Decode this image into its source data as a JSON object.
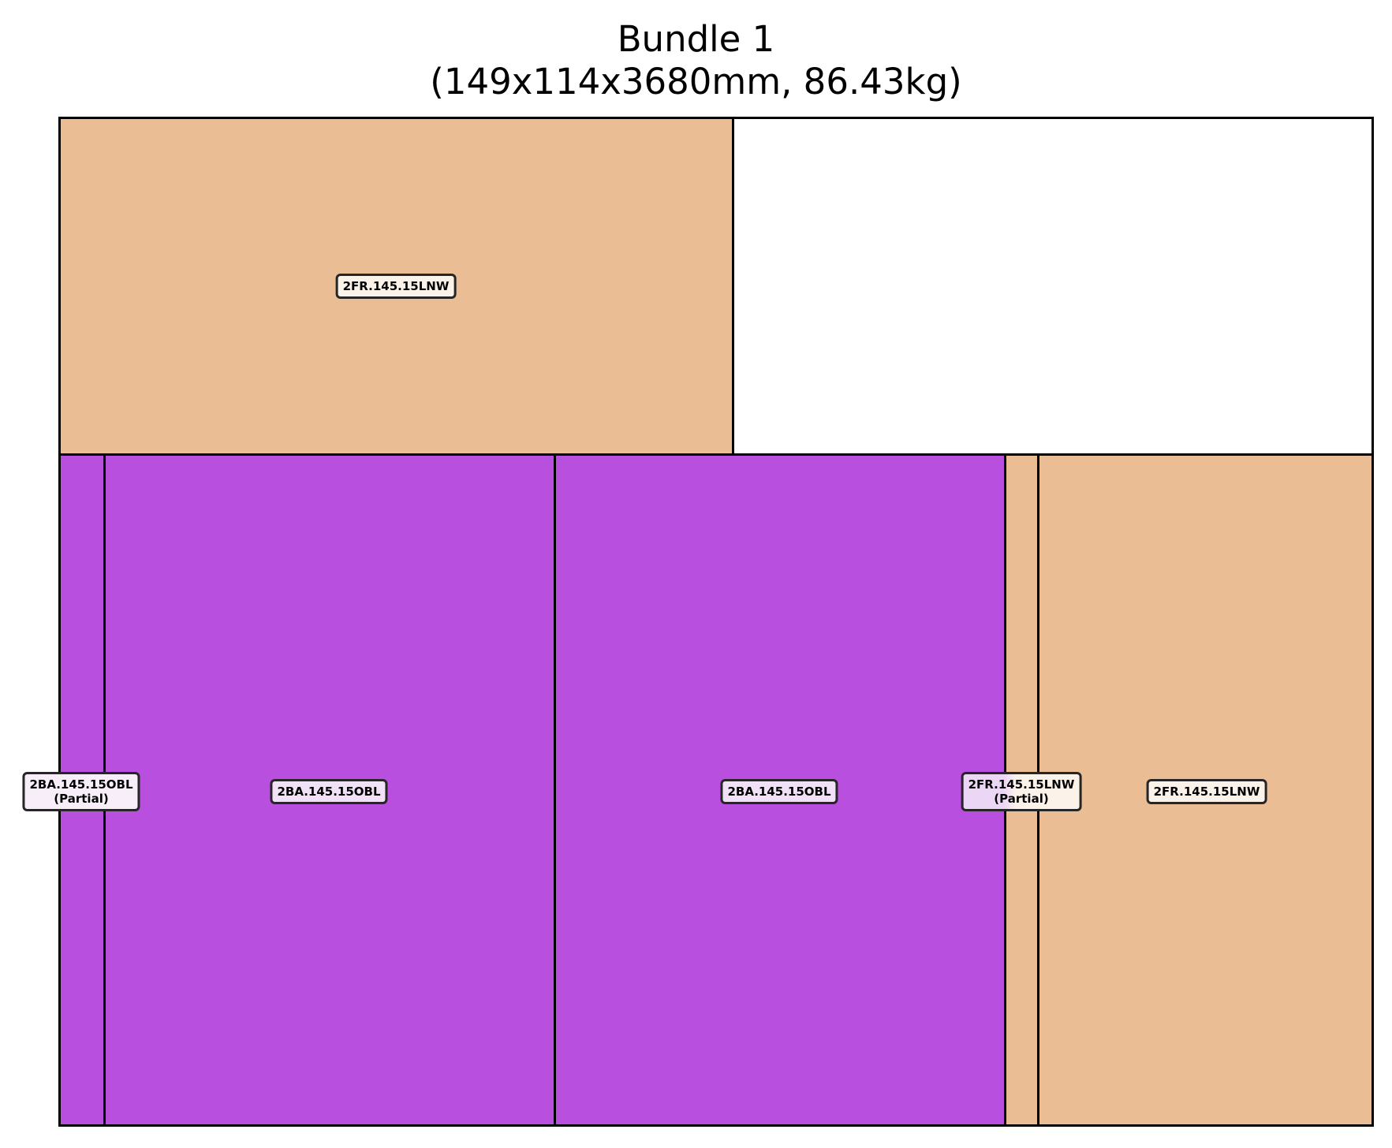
{
  "title": {
    "line1": "Bundle 1",
    "line2": "(149x114x3680mm, 86.43kg)"
  },
  "colors": {
    "purple": "#b94fde",
    "tan": "#eabd94",
    "label_bg_purple": "#f1e1f7",
    "label_bg_tan": "#fbf2ea",
    "border": "#000000"
  },
  "labels": {
    "piece_top": "2FR.145.15LNW",
    "piece_partial_left": "2BA.145.15OBL",
    "piece_partial_left_note": "(Partial)",
    "piece_purple_1": "2BA.145.15OBL",
    "piece_purple_2": "2BA.145.15OBL",
    "piece_partial_right": "2FR.145.15LNW",
    "piece_partial_right_note": "(Partial)",
    "piece_right": "2FR.145.15LNW"
  }
}
